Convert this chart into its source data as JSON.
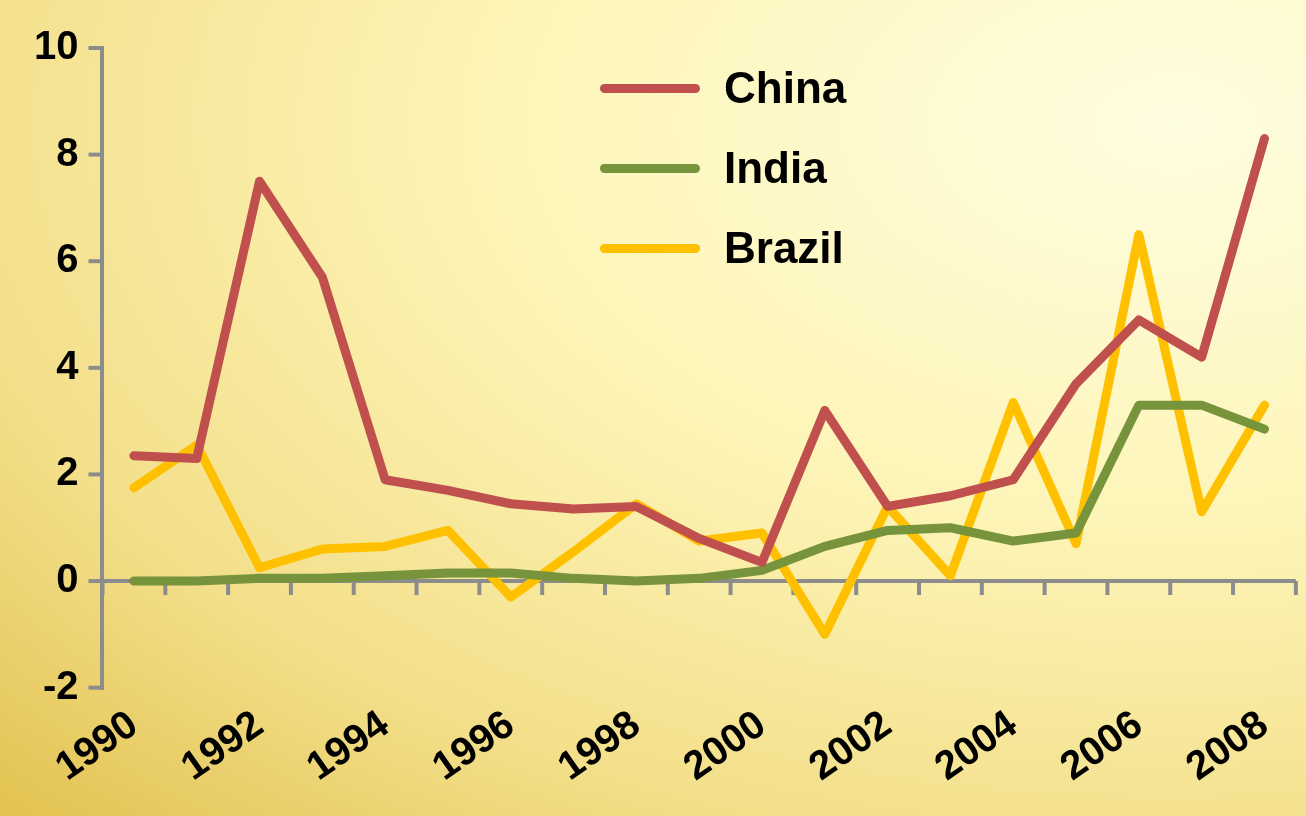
{
  "chart_data": {
    "type": "line",
    "categories": [
      "1990",
      null,
      "1992",
      null,
      "1994",
      null,
      "1996",
      null,
      "1998",
      null,
      "2000",
      null,
      "2002",
      null,
      "2004",
      null,
      "2006",
      null,
      "2008"
    ],
    "series": [
      {
        "name": "China",
        "color": "#c0504d",
        "values": [
          2.35,
          2.3,
          7.5,
          5.7,
          1.9,
          1.7,
          1.45,
          1.35,
          1.4,
          0.8,
          0.35,
          3.2,
          1.4,
          1.6,
          1.9,
          3.7,
          4.9,
          4.2,
          8.3
        ]
      },
      {
        "name": "India",
        "color": "#77933c",
        "values": [
          0,
          0,
          0.05,
          0.05,
          0.1,
          0.15,
          0.15,
          0.05,
          0,
          0.05,
          0.2,
          0.65,
          0.95,
          1.0,
          0.75,
          0.9,
          3.3,
          3.3,
          2.85
        ]
      },
      {
        "name": "Brazil",
        "color": "#ffc000",
        "values": [
          1.75,
          2.55,
          0.25,
          0.6,
          0.65,
          0.95,
          -0.3,
          0.55,
          1.45,
          0.75,
          0.9,
          -1.0,
          1.4,
          0.1,
          3.35,
          0.7,
          6.5,
          1.3,
          3.3
        ]
      }
    ],
    "ylim": [
      -2,
      10
    ],
    "yticks": [
      -2,
      0,
      2,
      4,
      6,
      8,
      10
    ],
    "ref_lines": [
      {
        "axis": "y",
        "value": 0,
        "color": "#8c8c8c"
      }
    ],
    "grid": false,
    "legend": "top",
    "marker": "none",
    "line_style": "solid"
  }
}
